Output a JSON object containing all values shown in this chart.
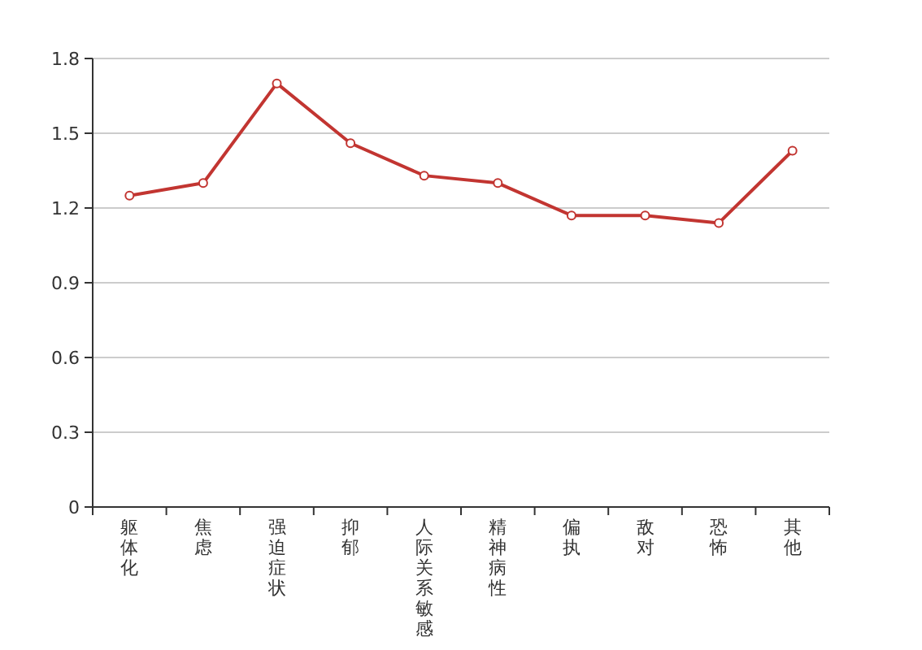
{
  "chart_data": {
    "type": "line",
    "categories": [
      "躯体化",
      "焦虑",
      "强迫症状",
      "抑郁",
      "人际关系敏感",
      "精神病性",
      "偏执",
      "敌对",
      "恐怖",
      "其他"
    ],
    "series": [
      {
        "color": "#c23531",
        "values": [
          1.25,
          1.3,
          1.7,
          1.46,
          1.33,
          1.3,
          1.17,
          1.17,
          1.14,
          1.43
        ]
      }
    ],
    "ylim": [
      0,
      1.8
    ],
    "yticks": [
      0,
      {
        "value": 0.3,
        "label": "0.3"
      },
      {
        "value": 0.6,
        "label": "0.6"
      },
      {
        "value": 0.9,
        "label": "0.9"
      },
      {
        "value": 1.2,
        "label": "1.2"
      },
      {
        "value": 1.5,
        "label": "1.5"
      },
      {
        "value": 1.8,
        "label": "1.8"
      }
    ],
    "grid": "y",
    "marker": "circle",
    "line_style": "solid"
  }
}
